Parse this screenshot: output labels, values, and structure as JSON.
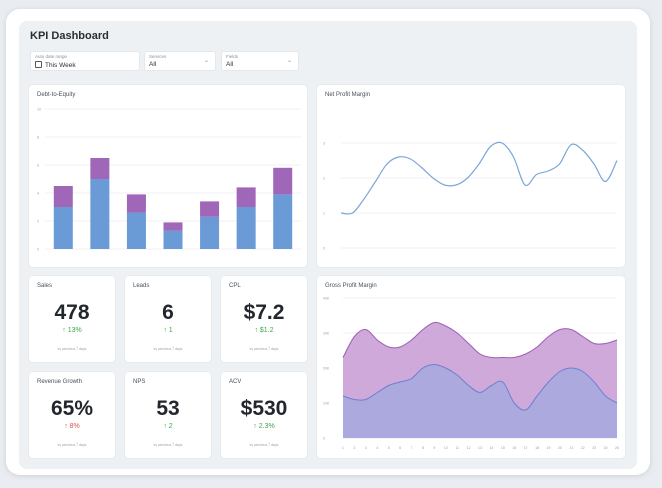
{
  "app": {
    "title": "KPI Dashboard"
  },
  "filters": [
    {
      "label": "Auto date range",
      "value": "This Week",
      "icon": "calendar-icon"
    },
    {
      "label": "Services",
      "value": "All",
      "icon": "chevron-down-icon"
    },
    {
      "label": "Fields",
      "value": "All",
      "icon": "chevron-down-icon"
    }
  ],
  "kpis": {
    "sales": {
      "label": "Sales",
      "value": "478",
      "delta": "↑ 13%",
      "direction": "up",
      "sub": "vs previous 7 days"
    },
    "leads": {
      "label": "Leads",
      "value": "6",
      "delta": "↑ 1",
      "direction": "up",
      "sub": "vs previous 7 days"
    },
    "cpl": {
      "label": "CPL",
      "value": "$7.2",
      "delta": "↑ $1.2",
      "direction": "up",
      "sub": "vs previous 7 days"
    },
    "revenue_growth": {
      "label": "Revenue Growth",
      "value": "65%",
      "delta": "↑ 8%",
      "direction": "down",
      "sub": "vs previous 7 days"
    },
    "nps": {
      "label": "NPS",
      "value": "53",
      "delta": "↑ 2",
      "direction": "up",
      "sub": "vs previous 7 days"
    },
    "acv": {
      "label": "ACV",
      "value": "$530",
      "delta": "↑ 2.3%",
      "direction": "up",
      "sub": "vs previous 7 days"
    }
  },
  "colors": {
    "blue": "#6a9bd6",
    "purple": "#a066b8",
    "line": "#7aa7d8",
    "area_purple": "#c79ad3",
    "area_blue": "#a7a9de",
    "up": "#3aa84b",
    "down": "#d9534f"
  },
  "chart_data": [
    {
      "type": "bar",
      "title": "Debt-to-Equity",
      "stacked": true,
      "ylim": [
        0,
        10
      ],
      "yticks": [
        "0",
        "2",
        "4",
        "6",
        "8",
        "10"
      ],
      "categories": [
        "1",
        "2",
        "3",
        "4",
        "5",
        "6",
        "7"
      ],
      "series": [
        {
          "values": [
            3.0,
            5.0,
            2.6,
            1.3,
            2.3,
            3.0,
            3.9
          ]
        },
        {
          "values": [
            1.5,
            1.5,
            1.3,
            0.6,
            1.1,
            1.4,
            1.9
          ]
        }
      ],
      "grid": true
    },
    {
      "type": "line",
      "title": "Net Profit Margin",
      "ylim": [
        0,
        3
      ],
      "yticks": [
        "0",
        "1",
        "2",
        "3"
      ],
      "x": [
        1,
        2,
        3,
        4,
        5,
        6,
        7,
        8,
        9,
        10,
        11,
        12,
        13,
        14,
        15,
        16,
        17,
        18,
        19,
        20,
        21,
        22,
        23,
        24,
        25
      ],
      "series": [
        {
          "values": [
            1.0,
            1.0,
            1.4,
            1.9,
            2.4,
            2.6,
            2.55,
            2.3,
            2.0,
            1.8,
            1.8,
            2.0,
            2.4,
            2.9,
            3.0,
            2.6,
            1.8,
            2.1,
            2.2,
            2.4,
            2.95,
            2.8,
            2.4,
            1.9,
            2.5
          ]
        }
      ],
      "grid": true
    },
    {
      "type": "area",
      "title": "Gross Profit Margin",
      "ylim": [
        0,
        40
      ],
      "yticks": [
        "0",
        "10K",
        "20K",
        "30K",
        "40K"
      ],
      "x": [
        "1",
        "2",
        "3",
        "4",
        "5",
        "6",
        "7",
        "8",
        "9",
        "10",
        "11",
        "12",
        "13",
        "14",
        "15",
        "16",
        "17",
        "18",
        "19",
        "20",
        "21",
        "22",
        "23",
        "24",
        "25"
      ],
      "series": [
        {
          "values": [
            23,
            29,
            31,
            28,
            26,
            26,
            28,
            31,
            33,
            32,
            30,
            27,
            24,
            23,
            23,
            23,
            24,
            26,
            29,
            31,
            31,
            29,
            27,
            27,
            28
          ]
        },
        {
          "values": [
            12,
            11,
            11,
            13,
            15,
            16,
            17,
            20,
            21,
            20,
            18,
            15,
            13,
            15,
            16,
            10,
            8,
            12,
            16,
            19,
            20,
            19,
            16,
            12,
            10
          ]
        }
      ],
      "grid": true
    }
  ]
}
